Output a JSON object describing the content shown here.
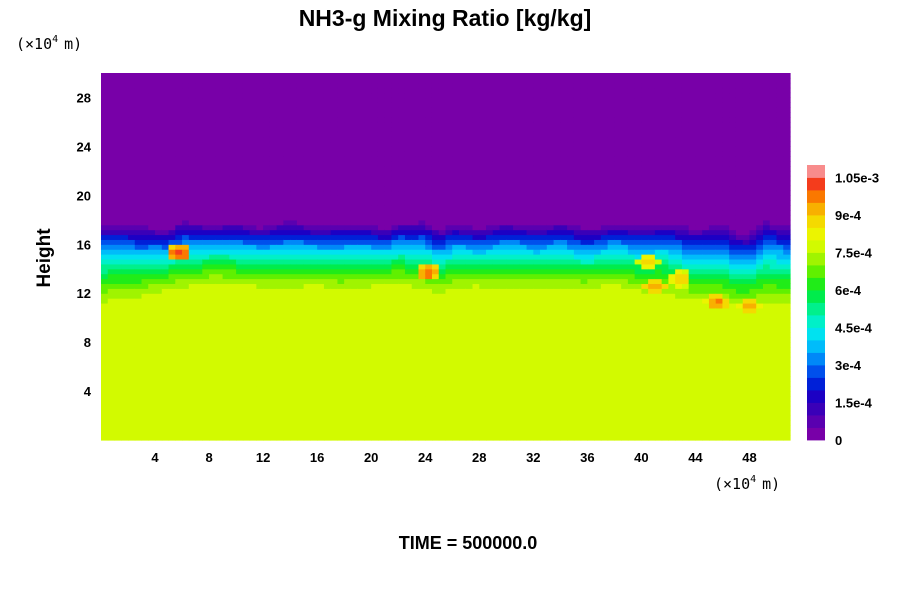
{
  "chart_data": {
    "type": "heatmap",
    "title": "NH3-g Mixing Ratio [kg/kg]",
    "footer": "TIME = 500000.0",
    "ylabel": "Height",
    "xscale_label": "(×10",
    "yscale_label": "(×10",
    "scale_exponent": "4",
    "scale_unit": "m)",
    "xlim": [
      0,
      51
    ],
    "ylim": [
      0,
      30
    ],
    "xticks": [
      4,
      8,
      12,
      16,
      20,
      24,
      28,
      32,
      36,
      40,
      44,
      48
    ],
    "yticks": [
      4,
      8,
      12,
      16,
      20,
      24,
      28
    ],
    "xtick_labels": [
      "4",
      "8",
      "12",
      "16",
      "20",
      "24",
      "28",
      "32",
      "36",
      "40",
      "44",
      "48"
    ],
    "ytick_labels": [
      "4",
      "8",
      "12",
      "16",
      "20",
      "24",
      "28"
    ],
    "colorbar": {
      "min": 0,
      "max": 0.0011,
      "levels": 22,
      "tick_values": [
        0,
        0.00015,
        0.0003,
        0.00045,
        0.0006,
        0.00075,
        0.0009,
        0.00105
      ],
      "tick_labels": [
        "0",
        "1.5e-4",
        "3e-4",
        "4.5e-4",
        "6e-4",
        "7.5e-4",
        "9e-4",
        "1.05e-3"
      ],
      "colors": [
        "#7800a8",
        "#5a00b0",
        "#3a00b8",
        "#1c00c4",
        "#0020d8",
        "#0050ec",
        "#0088f8",
        "#00bcfa",
        "#00e2f0",
        "#00f0c8",
        "#00f08c",
        "#00ec4c",
        "#20ec18",
        "#60f000",
        "#a0f400",
        "#d2fa00",
        "#ecf400",
        "#f4da00",
        "#f8b000",
        "#fa7800",
        "#f43c1c",
        "#f88c8c"
      ]
    },
    "profile": {
      "x": [
        0,
        2,
        4,
        5,
        6,
        8,
        10,
        12,
        14,
        16,
        18,
        20,
        21,
        22,
        23,
        24,
        25,
        26,
        28,
        30,
        32,
        34,
        36,
        38,
        40,
        42,
        44,
        46,
        47,
        48,
        49,
        50,
        51
      ],
      "top_height": [
        18.0,
        17.9,
        17.6,
        17.4,
        18.2,
        17.8,
        18.0,
        17.6,
        18.2,
        17.7,
        18.0,
        17.8,
        17.4,
        18.1,
        17.9,
        18.2,
        17.4,
        17.9,
        17.6,
        18.0,
        17.7,
        18.1,
        17.5,
        17.9,
        17.8,
        18.0,
        17.6,
        17.9,
        17.3,
        17.1,
        18.2,
        18.0,
        18.0
      ],
      "lower_transition_height": [
        10.5,
        11.0,
        11.5,
        11.8,
        12.0,
        12.3,
        12.2,
        11.9,
        12.0,
        12.1,
        11.8,
        11.9,
        12.4,
        12.2,
        12.0,
        11.8,
        11.6,
        11.9,
        12.1,
        11.9,
        12.0,
        11.8,
        12.0,
        12.1,
        11.6,
        11.3,
        10.9,
        10.6,
        10.4,
        10.3,
        10.3,
        10.5,
        10.5
      ],
      "above_top_value": 0,
      "lower_layer_value": 0.00078
    },
    "blobs": [
      {
        "x": 5.8,
        "height": 15.3,
        "value": 0.00102
      },
      {
        "x": 24.2,
        "height": 13.7,
        "value": 0.00098
      },
      {
        "x": 41.0,
        "height": 12.6,
        "value": 0.00095
      },
      {
        "x": 42.8,
        "height": 13.2,
        "value": 0.0009
      },
      {
        "x": 45.6,
        "height": 11.3,
        "value": 0.00096
      },
      {
        "x": 48.0,
        "height": 11.0,
        "value": 0.00092
      },
      {
        "x": 40.5,
        "height": 14.6,
        "value": 0.00088
      }
    ]
  }
}
